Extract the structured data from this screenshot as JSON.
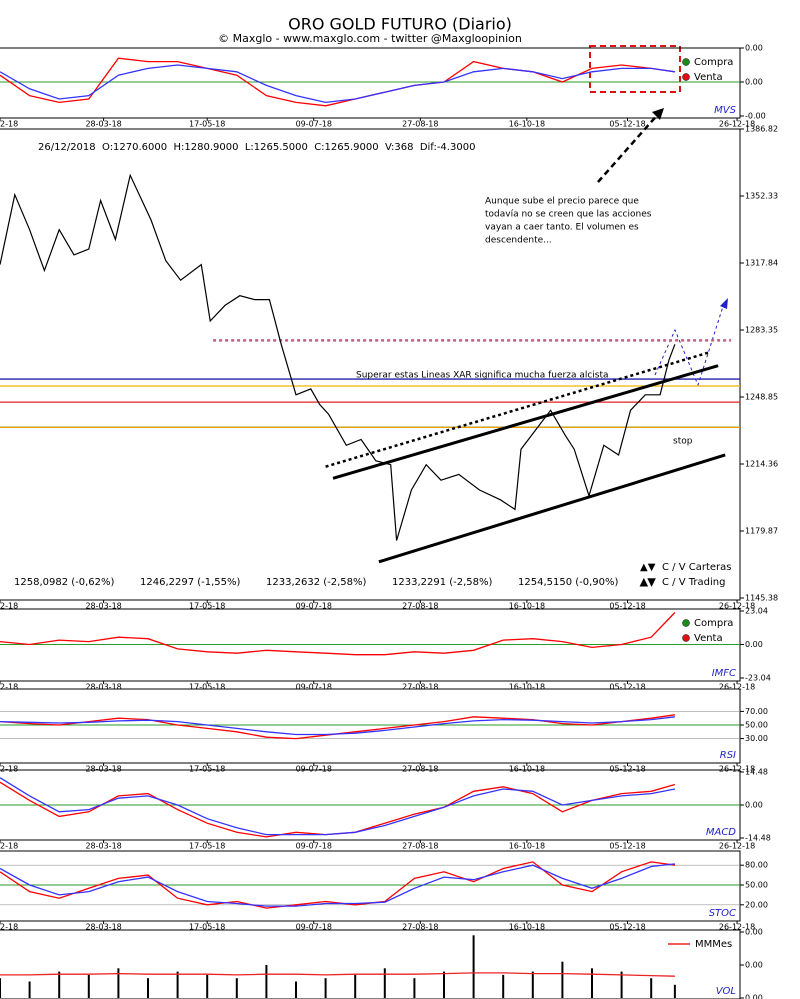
{
  "header": {
    "title": "ORO GOLD FUTURO (Diario)",
    "subtitle": "© Maxglo - www.maxglo.com - twitter @Maxgloopinion"
  },
  "chart_data": [
    {
      "type": "line",
      "title": "MVS",
      "xlim": [
        0,
        250
      ],
      "xticks": [
        {
          "value": 0,
          "label": "2-18"
        },
        {
          "value": 35,
          "label": "28-03-18"
        },
        {
          "value": 70,
          "label": "17-05-18"
        },
        {
          "value": 106,
          "label": "09-07-18"
        },
        {
          "value": 142,
          "label": "27-08-18"
        },
        {
          "value": 178,
          "label": "16-10-18"
        },
        {
          "value": 212,
          "label": "05-12-18"
        },
        {
          "value": 249,
          "label": "26-12-18"
        }
      ],
      "ylim": [
        -1,
        1
      ],
      "yticks": [
        {
          "value": 1,
          "label": "0.00"
        },
        {
          "value": 0,
          "label": "0.00"
        },
        {
          "value": -1,
          "label": "-0.00"
        }
      ],
      "hlines": [
        0
      ],
      "hline_color": "#2a9a2a",
      "legend": [
        "Compra",
        "Venta"
      ],
      "legend_colors": [
        "#1a8a1a",
        "#dd1111"
      ],
      "x": [
        0,
        10,
        20,
        30,
        40,
        50,
        60,
        70,
        80,
        90,
        100,
        110,
        120,
        130,
        140,
        150,
        160,
        170,
        180,
        190,
        200,
        210,
        220,
        228
      ],
      "series": [
        {
          "color": "#ff0000",
          "values": [
            0.2,
            -0.4,
            -0.6,
            -0.5,
            0.7,
            0.6,
            0.6,
            0.4,
            0.2,
            -0.4,
            -0.6,
            -0.7,
            -0.5,
            -0.3,
            -0.1,
            0.0,
            0.6,
            0.4,
            0.3,
            0.0,
            0.4,
            0.5,
            0.4,
            0.3
          ]
        },
        {
          "color": "#3333ff",
          "values": [
            0.3,
            -0.2,
            -0.5,
            -0.4,
            0.2,
            0.4,
            0.5,
            0.4,
            0.3,
            -0.1,
            -0.4,
            -0.6,
            -0.5,
            -0.3,
            -0.1,
            0.0,
            0.3,
            0.4,
            0.3,
            0.1,
            0.3,
            0.4,
            0.4,
            0.3
          ]
        }
      ]
    },
    {
      "type": "price",
      "info": "26/12/2018  O:1270.6000  H:1280.9000  L:1265.5000  C:1265.9000  V:368  Dif:-4.3000",
      "xlim": [
        0,
        250
      ],
      "xticks": [
        {
          "value": 0,
          "label": "2-18"
        },
        {
          "value": 35,
          "label": "28-03-18"
        },
        {
          "value": 70,
          "label": "17-05-18"
        },
        {
          "value": 106,
          "label": "09-07-18"
        },
        {
          "value": 142,
          "label": "27-08-18"
        },
        {
          "value": 178,
          "label": "16-10-18"
        },
        {
          "value": 212,
          "label": "05-12-18"
        },
        {
          "value": 249,
          "label": "26-12-18"
        }
      ],
      "ylim": [
        1145.38,
        1386.82
      ],
      "yticks": [
        1386.82,
        1352.33,
        1317.84,
        1283.35,
        1248.85,
        1214.36,
        1179.87,
        1145.38
      ],
      "x": [
        0,
        5,
        10,
        15,
        20,
        25,
        30,
        34,
        39,
        44,
        51,
        56,
        61,
        68,
        71,
        76,
        81,
        86,
        91,
        95,
        100,
        105,
        108,
        111,
        117,
        122,
        127,
        132,
        134,
        139,
        144,
        149,
        155,
        162,
        169,
        174,
        176,
        181,
        186,
        191,
        194,
        199,
        204,
        209,
        213,
        218,
        223,
        226,
        228
      ],
      "series": [
        {
          "color": "#000000",
          "values": [
            1317,
            1353,
            1335,
            1314,
            1335,
            1322,
            1325,
            1350,
            1330,
            1363,
            1340,
            1319,
            1309,
            1317,
            1288,
            1296,
            1301,
            1299,
            1299,
            1276,
            1250,
            1253,
            1245,
            1240,
            1224,
            1227,
            1216,
            1214,
            1175,
            1201,
            1214,
            1206,
            1209,
            1201,
            1196,
            1191,
            1222,
            1232,
            1242,
            1229,
            1222,
            1198,
            1224,
            1219,
            1242,
            1250,
            1250,
            1268,
            1276
          ]
        }
      ],
      "levels": {
        "values": [
          1258.0982,
          1246.2297,
          1233.2632,
          1233.2291,
          1254.515
        ],
        "value_labels": [
          "1258,0982 (-0,62%)",
          "1246,2297 (-1,55%)",
          "1233,2632 (-2,58%)",
          "1233,2291 (-2,58%)",
          "1254,5150 (-0,90%)"
        ],
        "colors": [
          "#2222aa",
          "#e02020",
          "#2a8a2a",
          "#f0a000",
          "#f0b400"
        ]
      },
      "trendlines": [
        {
          "x": [
            128,
            245
          ],
          "y": [
            1164,
            1219
          ],
          "color": "#000000",
          "style": "solid"
        },
        {
          "x": [
            112.5,
            242.6
          ],
          "y": [
            1207,
            1265
          ],
          "color": "#000000",
          "style": "solid"
        },
        {
          "x": [
            110,
            240
          ],
          "y": [
            1213,
            1272
          ],
          "color": "#000000",
          "style": "dotted"
        },
        {
          "x": [
            72,
            247
          ],
          "y": [
            1278,
            1278
          ],
          "color": "#c06080",
          "style": "dotted"
        }
      ],
      "annotations": [
        [
          "Aunque sube el precio parece que",
          "todavía no se creen que las acciones",
          "vayan a caer  tanto. El volumen es",
          "descendente..."
        ],
        [
          "Superar estas Lineas XAR significa mucha fuerza alcista"
        ],
        [
          "stop"
        ]
      ],
      "legend": [
        "C / V Carteras",
        "C / V Trading"
      ]
    },
    {
      "type": "line",
      "title": "IMFC",
      "xlim": [
        0,
        250
      ],
      "xticks": [
        {
          "value": 0,
          "label": "2-18"
        },
        {
          "value": 35,
          "label": "28-03-18"
        },
        {
          "value": 70,
          "label": "17-05-18"
        },
        {
          "value": 106,
          "label": "09-07-18"
        },
        {
          "value": 142,
          "label": "27-08-18"
        },
        {
          "value": 178,
          "label": "16-10-18"
        },
        {
          "value": 212,
          "label": "05-12-18"
        },
        {
          "value": 249,
          "label": "26-12-18"
        }
      ],
      "ylim": [
        -23.04,
        23.04
      ],
      "yticks": [
        23.04,
        {
          "value": 0,
          "label": "0.00"
        },
        -23.04
      ],
      "hlines": [
        0
      ],
      "hline_color": "#2a9a2a",
      "legend": [
        "Compra",
        "Venta"
      ],
      "legend_colors": [
        "#1a8a1a",
        "#dd1111"
      ],
      "x": [
        0,
        10,
        20,
        30,
        40,
        50,
        60,
        70,
        80,
        90,
        100,
        110,
        120,
        130,
        140,
        150,
        160,
        170,
        180,
        190,
        200,
        210,
        220,
        228
      ],
      "series": [
        {
          "color": "#ff0000",
          "values": [
            2,
            0,
            3,
            2,
            5,
            4,
            -3,
            -5,
            -6,
            -4,
            -5,
            -6,
            -7,
            -7,
            -5,
            -6,
            -4,
            3,
            4,
            2,
            -2,
            0,
            5,
            22
          ]
        }
      ]
    },
    {
      "type": "line",
      "title": "RSI",
      "xlim": [
        0,
        250
      ],
      "xticks": [
        {
          "value": 0,
          "label": "2-18"
        },
        {
          "value": 35,
          "label": "28-03-18"
        },
        {
          "value": 70,
          "label": "17-05-18"
        },
        {
          "value": 106,
          "label": "09-07-18"
        },
        {
          "value": 142,
          "label": "27-08-18"
        },
        {
          "value": 178,
          "label": "16-10-18"
        },
        {
          "value": 212,
          "label": "05-12-18"
        },
        {
          "value": 249,
          "label": "26-12-18"
        }
      ],
      "ylim": [
        0,
        100
      ],
      "yticks": [
        {
          "value": 70,
          "label": "70.00"
        },
        {
          "value": 50,
          "label": "50.00"
        },
        {
          "value": 30,
          "label": "30.00"
        }
      ],
      "grid": true,
      "hlines": [
        50
      ],
      "hline_color": "#2a9a2a",
      "x": [
        0,
        10,
        20,
        30,
        40,
        50,
        60,
        70,
        80,
        90,
        100,
        110,
        120,
        130,
        140,
        150,
        160,
        170,
        180,
        190,
        200,
        210,
        220,
        228
      ],
      "series": [
        {
          "color": "#ff0000",
          "values": [
            55,
            52,
            50,
            55,
            60,
            58,
            50,
            45,
            40,
            32,
            30,
            35,
            40,
            45,
            50,
            55,
            62,
            60,
            58,
            52,
            50,
            55,
            60,
            65
          ]
        },
        {
          "color": "#3333ff",
          "values": [
            55,
            54,
            53,
            54,
            56,
            57,
            55,
            50,
            45,
            40,
            36,
            36,
            38,
            42,
            47,
            52,
            56,
            58,
            57,
            55,
            53,
            55,
            58,
            62
          ]
        }
      ]
    },
    {
      "type": "line",
      "title": "MACD",
      "xlim": [
        0,
        250
      ],
      "xticks": [
        {
          "value": 0,
          "label": "2-18"
        },
        {
          "value": 35,
          "label": "28-03-18"
        },
        {
          "value": 70,
          "label": "17-05-18"
        },
        {
          "value": 106,
          "label": "09-07-18"
        },
        {
          "value": 142,
          "label": "27-08-18"
        },
        {
          "value": 178,
          "label": "16-10-18"
        },
        {
          "value": 212,
          "label": "05-12-18"
        },
        {
          "value": 249,
          "label": "26-12-18"
        }
      ],
      "ylim": [
        -14.48,
        14.48
      ],
      "yticks": [
        14.48,
        {
          "value": 0,
          "label": "0.00"
        },
        -14.48
      ],
      "hlines": [
        0
      ],
      "hline_color": "#2a9a2a",
      "x": [
        0,
        10,
        20,
        30,
        40,
        50,
        60,
        70,
        80,
        90,
        100,
        110,
        120,
        130,
        140,
        150,
        160,
        170,
        180,
        190,
        200,
        210,
        220,
        228
      ],
      "series": [
        {
          "color": "#ff0000",
          "values": [
            10,
            2,
            -5,
            -3,
            4,
            5,
            -2,
            -8,
            -12,
            -14,
            -12,
            -13,
            -12,
            -8,
            -4,
            -1,
            6,
            8,
            5,
            -3,
            2,
            5,
            6,
            9
          ]
        },
        {
          "color": "#3333ff",
          "values": [
            12,
            4,
            -3,
            -2,
            3,
            4,
            0,
            -6,
            -10,
            -13,
            -13,
            -13,
            -12,
            -9,
            -5,
            -1,
            4,
            7,
            6,
            0,
            2,
            4,
            5,
            7
          ]
        }
      ]
    },
    {
      "type": "line",
      "title": "STOC",
      "xlim": [
        0,
        250
      ],
      "xticks": [
        {
          "value": 0,
          "label": "2-18"
        },
        {
          "value": 35,
          "label": "28-03-18"
        },
        {
          "value": 70,
          "label": "17-05-18"
        },
        {
          "value": 106,
          "label": "09-07-18"
        },
        {
          "value": 142,
          "label": "27-08-18"
        },
        {
          "value": 178,
          "label": "16-10-18"
        },
        {
          "value": 212,
          "label": "05-12-18"
        },
        {
          "value": 249,
          "label": "26-12-18"
        }
      ],
      "ylim": [
        0,
        100
      ],
      "yticks": [
        {
          "value": 80,
          "label": "80.00"
        },
        {
          "value": 50,
          "label": "50.00"
        },
        {
          "value": 20,
          "label": "20.00"
        }
      ],
      "grid": true,
      "hlines": [
        50
      ],
      "hline_color": "#2a9a2a",
      "x": [
        0,
        10,
        20,
        30,
        40,
        50,
        60,
        70,
        80,
        90,
        100,
        110,
        120,
        130,
        140,
        150,
        160,
        170,
        180,
        190,
        200,
        210,
        220,
        228
      ],
      "series": [
        {
          "color": "#ff0000",
          "values": [
            70,
            40,
            30,
            45,
            60,
            65,
            30,
            20,
            25,
            15,
            20,
            25,
            20,
            25,
            60,
            70,
            55,
            75,
            85,
            50,
            40,
            70,
            85,
            80
          ]
        },
        {
          "color": "#3333ff",
          "values": [
            75,
            50,
            35,
            40,
            55,
            62,
            40,
            25,
            22,
            18,
            18,
            22,
            22,
            24,
            45,
            62,
            58,
            70,
            80,
            60,
            45,
            60,
            78,
            82
          ]
        }
      ]
    },
    {
      "type": "bar",
      "title": "VOL",
      "xlim": [
        0,
        250
      ],
      "ylim": [
        0,
        100
      ],
      "yticks": [
        {
          "value": 100,
          "label": "0.00"
        },
        {
          "value": 50,
          "label": "0.00"
        },
        {
          "value": 0,
          "label": "0.00"
        }
      ],
      "x": [
        0,
        10,
        20,
        30,
        40,
        50,
        60,
        70,
        80,
        90,
        100,
        110,
        120,
        130,
        140,
        150,
        160,
        170,
        180,
        190,
        200,
        210,
        220,
        228
      ],
      "values": [
        30,
        25,
        40,
        35,
        45,
        30,
        40,
        35,
        30,
        50,
        25,
        30,
        35,
        45,
        30,
        40,
        95,
        35,
        40,
        55,
        45,
        40,
        30,
        20
      ],
      "color": "#000000",
      "series": [
        {
          "name": "MMMes",
          "color": "#ee2222",
          "values": [
            35,
            35,
            36,
            36,
            37,
            36,
            36,
            36,
            35,
            36,
            36,
            35,
            36,
            36,
            36,
            37,
            38,
            38,
            37,
            37,
            36,
            35,
            34,
            33
          ]
        }
      ]
    }
  ]
}
